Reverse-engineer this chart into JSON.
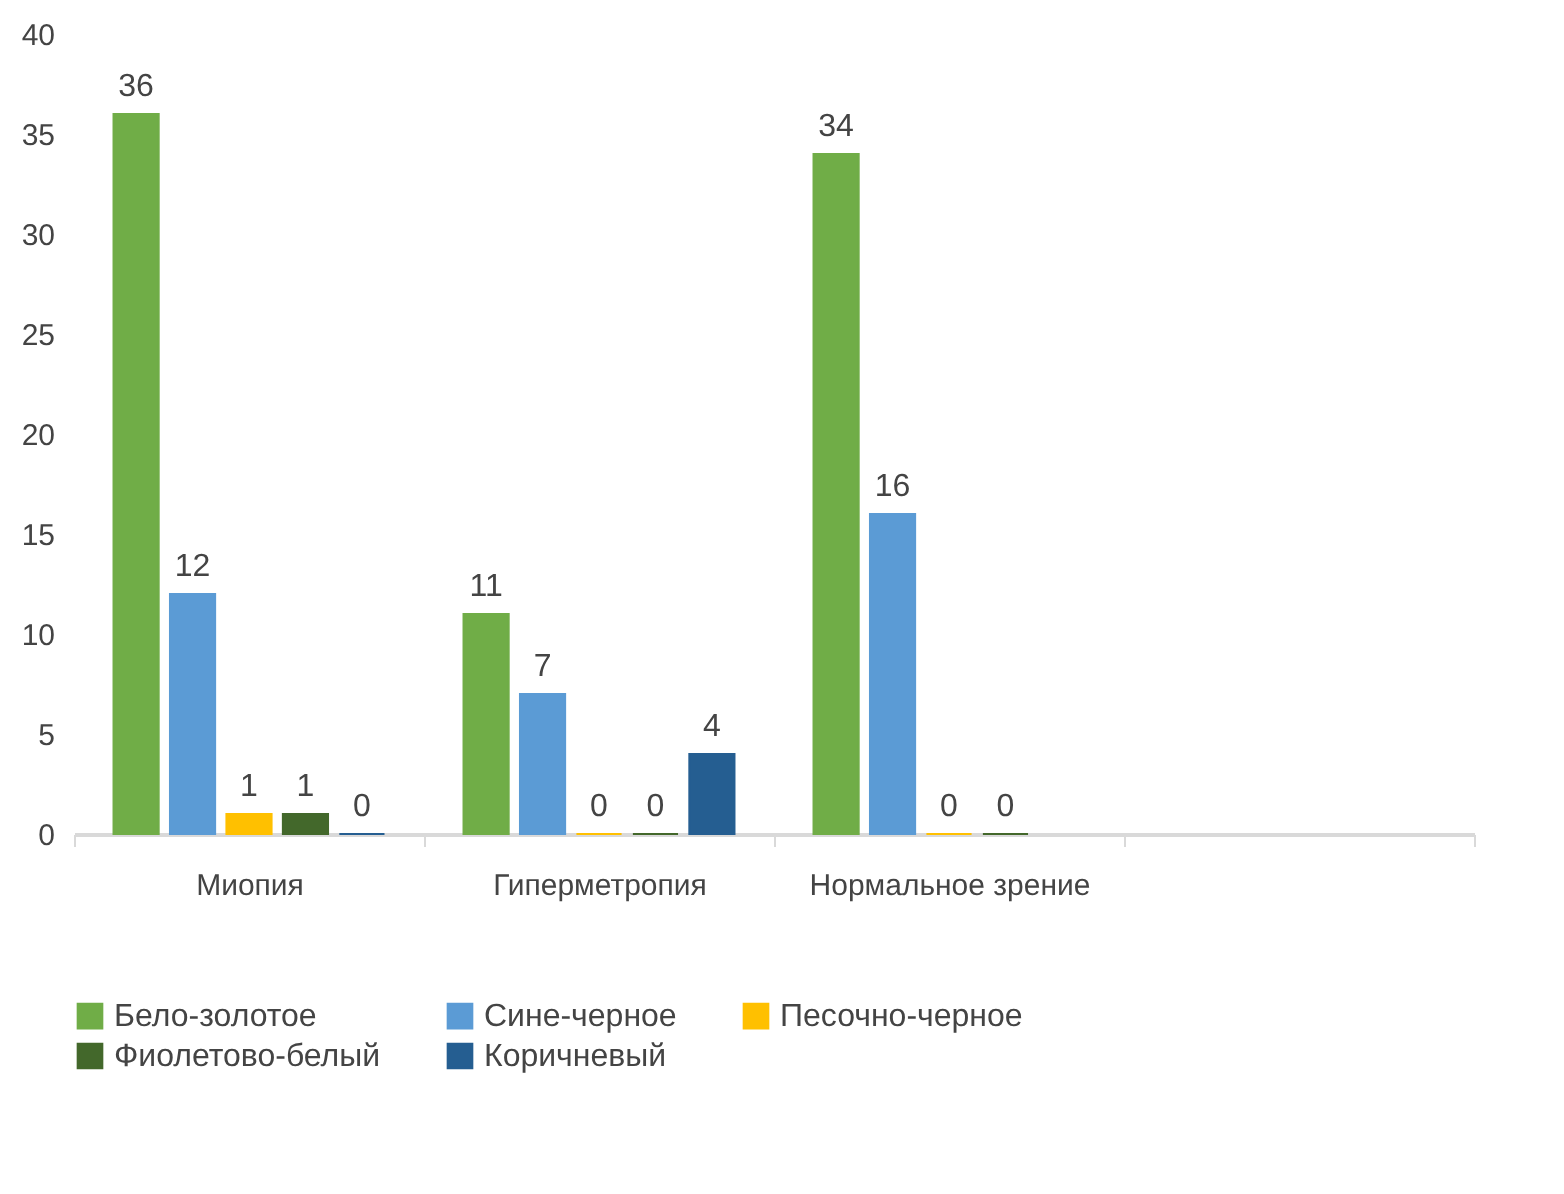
{
  "chart_data": {
    "type": "bar",
    "categories": [
      "Миопия",
      "Гиперметропия",
      "Нормальное зрение",
      null
    ],
    "series": [
      {
        "name": "Бело-золотое",
        "color": "#70ad47",
        "values": [
          36,
          11,
          34,
          null
        ]
      },
      {
        "name": "Сине-черное",
        "color": "#5b9bd5",
        "values": [
          12,
          7,
          16,
          null
        ]
      },
      {
        "name": "Песочно-черное",
        "color": "#ffc000",
        "values": [
          1,
          0,
          0,
          null
        ]
      },
      {
        "name": "Фиолетово-белый",
        "color": "#43682b",
        "values": [
          1,
          0,
          0,
          null
        ]
      },
      {
        "name": "Коричневый",
        "color": "#255e91",
        "values": [
          0,
          4,
          null,
          null
        ]
      }
    ],
    "ylim": [
      0,
      40
    ],
    "yticks": [
      0,
      5,
      10,
      15,
      20,
      25,
      30,
      35,
      40
    ],
    "grid": false,
    "legend": "bottom",
    "data_labels": true
  }
}
